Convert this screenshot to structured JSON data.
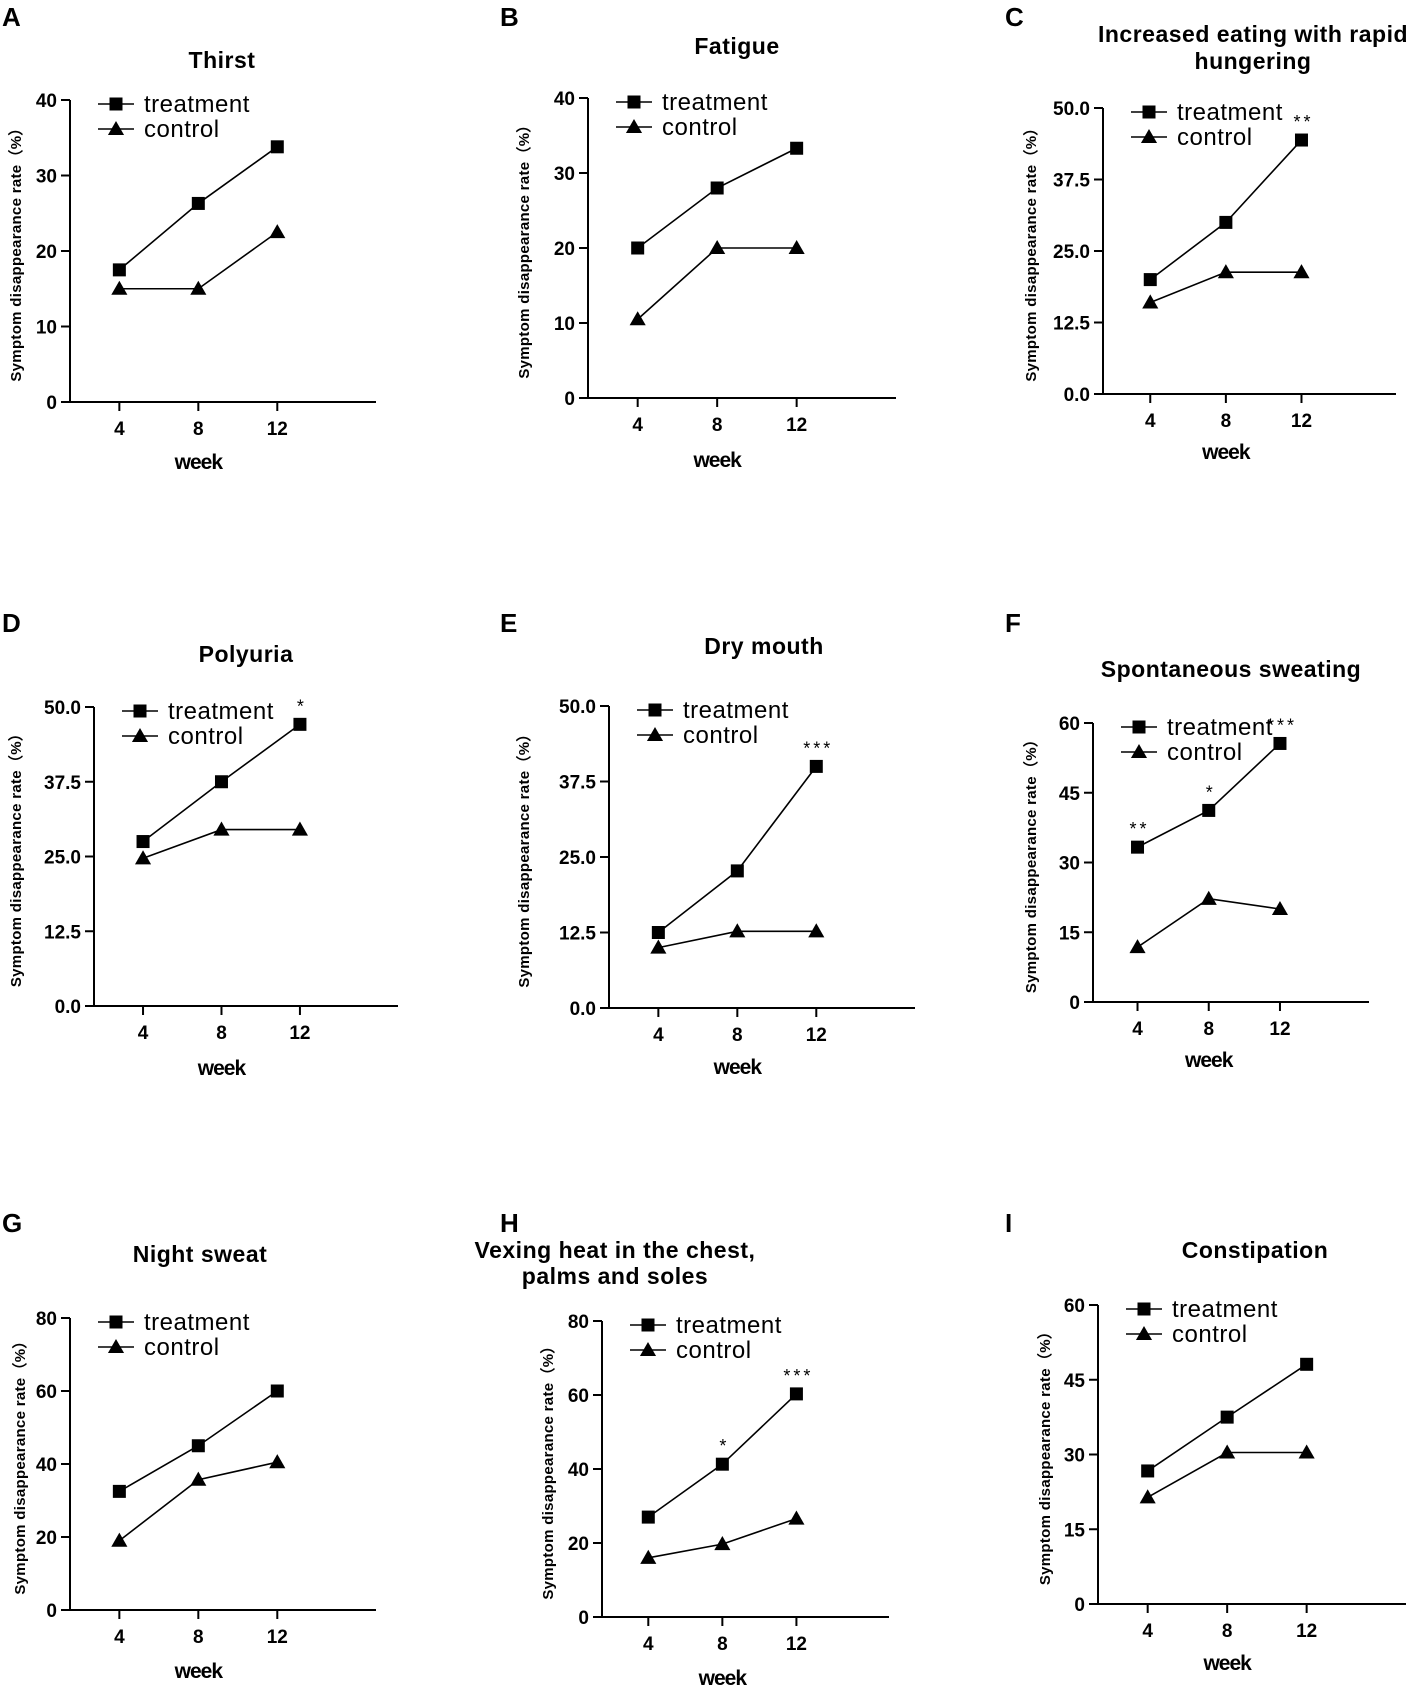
{
  "chart_data": [
    {
      "panel": "A",
      "title": [
        "Thirst"
      ],
      "type": "line",
      "xlabel": "week",
      "ylabel": "Symptom disappearance rate（%）",
      "x": [
        4,
        8,
        12
      ],
      "xlim": [
        1.5,
        17
      ],
      "ylim": [
        0,
        40
      ],
      "yticks": [
        0,
        10,
        20,
        30,
        40
      ],
      "yticklabels": [
        "0",
        "10",
        "20",
        "30",
        "40"
      ],
      "legend": "top-left",
      "series": [
        {
          "name": "treatment",
          "marker": "square",
          "values": [
            17.5,
            26.3,
            33.8
          ]
        },
        {
          "name": "control",
          "marker": "triangle",
          "values": [
            15.0,
            15.0,
            22.5
          ]
        }
      ],
      "significance": []
    },
    {
      "panel": "B",
      "title": [
        "Fatigue"
      ],
      "type": "line",
      "xlabel": "week",
      "ylabel": "Symptom disappearance rate（%）",
      "x": [
        4,
        8,
        12
      ],
      "xlim": [
        1.5,
        17
      ],
      "ylim": [
        0,
        40
      ],
      "yticks": [
        0,
        10,
        20,
        30,
        40
      ],
      "yticklabels": [
        "0",
        "10",
        "20",
        "30",
        "40"
      ],
      "legend": "top-left",
      "series": [
        {
          "name": "treatment",
          "marker": "square",
          "values": [
            20.0,
            28.0,
            33.3
          ]
        },
        {
          "name": "control",
          "marker": "triangle",
          "values": [
            10.5,
            20.0,
            20.0
          ]
        }
      ],
      "significance": []
    },
    {
      "panel": "C",
      "title": [
        "Increased eating with rapid",
        "hungering"
      ],
      "type": "line",
      "xlabel": "week",
      "ylabel": "Symptom disappearance rate（%）",
      "x": [
        4,
        8,
        12
      ],
      "xlim": [
        1.5,
        17
      ],
      "ylim": [
        0,
        50
      ],
      "yticks": [
        0,
        12.5,
        25,
        37.5,
        50
      ],
      "yticklabels": [
        "0.0",
        "12.5",
        "25.0",
        "37.5",
        "50.0"
      ],
      "legend": "top-left",
      "series": [
        {
          "name": "treatment",
          "marker": "square",
          "values": [
            20.0,
            30.0,
            44.4
          ]
        },
        {
          "name": "control",
          "marker": "triangle",
          "values": [
            16.0,
            21.3,
            21.3
          ]
        }
      ],
      "significance": [
        {
          "x": 12,
          "label": "**"
        }
      ]
    },
    {
      "panel": "D",
      "title": [
        "Polyuria"
      ],
      "type": "line",
      "xlabel": "week",
      "ylabel": "Symptom disappearance rate（%）",
      "x": [
        4,
        8,
        12
      ],
      "xlim": [
        1.5,
        17
      ],
      "ylim": [
        0,
        50
      ],
      "yticks": [
        0,
        12.5,
        25,
        37.5,
        50
      ],
      "yticklabels": [
        "0.0",
        "12.5",
        "25.0",
        "37.5",
        "50.0"
      ],
      "legend": "top-left",
      "series": [
        {
          "name": "treatment",
          "marker": "square",
          "values": [
            27.5,
            37.5,
            47.1
          ]
        },
        {
          "name": "control",
          "marker": "triangle",
          "values": [
            24.7,
            29.5,
            29.5
          ]
        }
      ],
      "significance": [
        {
          "x": 12,
          "label": "*"
        }
      ]
    },
    {
      "panel": "E",
      "title": [
        "Dry mouth"
      ],
      "type": "line",
      "xlabel": "week",
      "ylabel": "Symptom disappearance rate（%）",
      "x": [
        4,
        8,
        12
      ],
      "xlim": [
        1.5,
        17
      ],
      "ylim": [
        0,
        50
      ],
      "yticks": [
        0,
        12.5,
        25,
        37.5,
        50
      ],
      "yticklabels": [
        "0.0",
        "12.5",
        "25.0",
        "37.5",
        "50.0"
      ],
      "legend": "top-left",
      "series": [
        {
          "name": "treatment",
          "marker": "square",
          "values": [
            12.5,
            22.7,
            40.0
          ]
        },
        {
          "name": "control",
          "marker": "triangle",
          "values": [
            10.0,
            12.7,
            12.7
          ]
        }
      ],
      "significance": [
        {
          "x": 12,
          "label": "***"
        }
      ]
    },
    {
      "panel": "F",
      "title": [
        "Spontaneous sweating"
      ],
      "type": "line",
      "xlabel": "week",
      "ylabel": "Symptom disappearance rate（%）",
      "x": [
        4,
        8,
        12
      ],
      "xlim": [
        1.5,
        17
      ],
      "ylim": [
        0,
        60
      ],
      "yticks": [
        0,
        15,
        30,
        45,
        60
      ],
      "yticklabels": [
        "0",
        "15",
        "30",
        "45",
        "60"
      ],
      "legend": "top-left",
      "series": [
        {
          "name": "treatment",
          "marker": "square",
          "values": [
            33.3,
            41.2,
            55.6
          ]
        },
        {
          "name": "control",
          "marker": "triangle",
          "values": [
            11.8,
            22.2,
            20.0
          ]
        }
      ],
      "significance": [
        {
          "x": 4,
          "label": "**"
        },
        {
          "x": 8,
          "label": "*"
        },
        {
          "x": 12,
          "label": "***"
        }
      ]
    },
    {
      "panel": "G",
      "title": [
        "Night sweat"
      ],
      "type": "line",
      "xlabel": "week",
      "ylabel": "Symptom disappearance rate（%）",
      "x": [
        4,
        8,
        12
      ],
      "xlim": [
        1.5,
        17
      ],
      "ylim": [
        0,
        80
      ],
      "yticks": [
        0,
        20,
        40,
        60,
        80
      ],
      "yticklabels": [
        "0",
        "20",
        "40",
        "60",
        "80"
      ],
      "legend": "top-left",
      "series": [
        {
          "name": "treatment",
          "marker": "square",
          "values": [
            32.5,
            45.0,
            60.0
          ]
        },
        {
          "name": "control",
          "marker": "triangle",
          "values": [
            19.0,
            35.7,
            40.5
          ]
        }
      ],
      "significance": []
    },
    {
      "panel": "H",
      "title": [
        "Vexing heat in the chest,",
        "palms and soles"
      ],
      "type": "line",
      "xlabel": "week",
      "ylabel": "Symptom disappearance rate（%）",
      "x": [
        4,
        8,
        12
      ],
      "xlim": [
        1.5,
        17
      ],
      "ylim": [
        0,
        80
      ],
      "yticks": [
        0,
        20,
        40,
        60,
        80
      ],
      "yticklabels": [
        "0",
        "20",
        "40",
        "60",
        "80"
      ],
      "legend": "top-left",
      "series": [
        {
          "name": "treatment",
          "marker": "square",
          "values": [
            27.0,
            41.3,
            60.3
          ]
        },
        {
          "name": "control",
          "marker": "triangle",
          "values": [
            16.0,
            19.7,
            26.6
          ]
        }
      ],
      "significance": [
        {
          "x": 8,
          "label": "*"
        },
        {
          "x": 12,
          "label": "***"
        }
      ]
    },
    {
      "panel": "I",
      "title": [
        "Constipation"
      ],
      "type": "line",
      "xlabel": "week",
      "ylabel": "Symptom disappearance rate（%）",
      "x": [
        4,
        8,
        12
      ],
      "xlim": [
        1.5,
        17
      ],
      "ylim": [
        0,
        60
      ],
      "yticks": [
        0,
        15,
        30,
        45,
        60
      ],
      "yticklabels": [
        "0",
        "15",
        "30",
        "45",
        "60"
      ],
      "legend": "top-left",
      "series": [
        {
          "name": "treatment",
          "marker": "square",
          "values": [
            26.7,
            37.5,
            48.1
          ]
        },
        {
          "name": "control",
          "marker": "triangle",
          "values": [
            21.4,
            30.4,
            30.4
          ]
        }
      ],
      "significance": []
    }
  ]
}
